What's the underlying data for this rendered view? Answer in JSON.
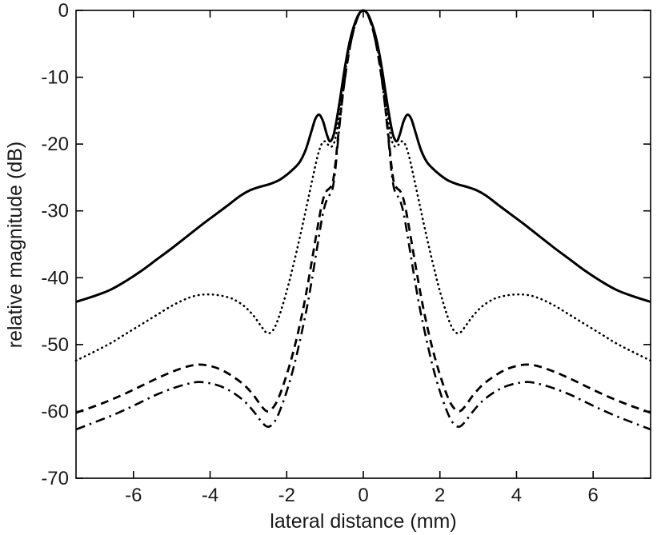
{
  "chart_data": {
    "type": "line",
    "title": "",
    "xlabel": "lateral distance (mm)",
    "ylabel": "relative magnitude (dB)",
    "xlim": [
      -7.5,
      7.5
    ],
    "ylim": [
      -70,
      0
    ],
    "xticks": [
      -6,
      -4,
      -2,
      0,
      2,
      4,
      6
    ],
    "yticks": [
      0,
      -10,
      -20,
      -30,
      -40,
      -50,
      -60,
      -70
    ],
    "grid": false,
    "legend": "none",
    "line_color": "#000000",
    "note": "all four curves are symmetric about x = 0; points are given for x >= 0 and mirrored",
    "series": [
      {
        "name": "solid",
        "style": "solid",
        "width": 3,
        "points_x_ge_0": [
          [
            0,
            0
          ],
          [
            0.1,
            -0.4
          ],
          [
            0.2,
            -1.6
          ],
          [
            0.3,
            -3.4
          ],
          [
            0.4,
            -5.9
          ],
          [
            0.5,
            -9.2
          ],
          [
            0.6,
            -13
          ],
          [
            0.7,
            -16.5
          ],
          [
            0.78,
            -18.7
          ],
          [
            0.87,
            -19.6
          ],
          [
            0.95,
            -18.6
          ],
          [
            1.05,
            -16.6
          ],
          [
            1.15,
            -15.6
          ],
          [
            1.25,
            -16.2
          ],
          [
            1.35,
            -18
          ],
          [
            1.5,
            -20.8
          ],
          [
            1.65,
            -22.6
          ],
          [
            1.8,
            -23.6
          ],
          [
            2.0,
            -24.6
          ],
          [
            2.2,
            -25.4
          ],
          [
            2.45,
            -26
          ],
          [
            2.7,
            -26.4
          ],
          [
            2.95,
            -26.9
          ],
          [
            3.2,
            -27.7
          ],
          [
            3.5,
            -29
          ],
          [
            3.8,
            -30.3
          ],
          [
            4.2,
            -32
          ],
          [
            4.6,
            -33.8
          ],
          [
            5.0,
            -35.6
          ],
          [
            5.4,
            -37.3
          ],
          [
            5.8,
            -39
          ],
          [
            6.2,
            -40.5
          ],
          [
            6.6,
            -41.8
          ],
          [
            7.0,
            -42.7
          ],
          [
            7.5,
            -43.6
          ]
        ]
      },
      {
        "name": "dotted",
        "style": "dotted",
        "width": 2.6,
        "points_x_ge_0": [
          [
            0,
            0
          ],
          [
            0.1,
            -0.45
          ],
          [
            0.2,
            -1.8
          ],
          [
            0.3,
            -3.8
          ],
          [
            0.4,
            -6.6
          ],
          [
            0.5,
            -10.2
          ],
          [
            0.6,
            -14.4
          ],
          [
            0.68,
            -17.6
          ],
          [
            0.75,
            -19.6
          ],
          [
            0.83,
            -20.4
          ],
          [
            0.92,
            -20.1
          ],
          [
            1.0,
            -19.6
          ],
          [
            1.08,
            -19.9
          ],
          [
            1.18,
            -21.5
          ],
          [
            1.3,
            -24.5
          ],
          [
            1.45,
            -28.5
          ],
          [
            1.6,
            -32.5
          ],
          [
            1.8,
            -37.5
          ],
          [
            2.0,
            -42
          ],
          [
            2.2,
            -45.8
          ],
          [
            2.35,
            -47.8
          ],
          [
            2.5,
            -48.3
          ],
          [
            2.65,
            -47.4
          ],
          [
            2.85,
            -45.8
          ],
          [
            3.1,
            -44.3
          ],
          [
            3.4,
            -43.2
          ],
          [
            3.7,
            -42.7
          ],
          [
            4.0,
            -42.5
          ],
          [
            4.3,
            -42.6
          ],
          [
            4.6,
            -43.1
          ],
          [
            5.0,
            -44.2
          ],
          [
            5.4,
            -45.6
          ],
          [
            5.8,
            -47
          ],
          [
            6.2,
            -48.4
          ],
          [
            6.6,
            -49.8
          ],
          [
            7.0,
            -51
          ],
          [
            7.5,
            -52.4
          ]
        ]
      },
      {
        "name": "dashed",
        "style": "dashed",
        "width": 2.8,
        "points_x_ge_0": [
          [
            0,
            0
          ],
          [
            0.1,
            -0.5
          ],
          [
            0.2,
            -1.9
          ],
          [
            0.3,
            -4.1
          ],
          [
            0.4,
            -7.1
          ],
          [
            0.5,
            -11
          ],
          [
            0.58,
            -14.8
          ],
          [
            0.66,
            -19
          ],
          [
            0.73,
            -23
          ],
          [
            0.8,
            -25.8
          ],
          [
            0.88,
            -26.6
          ],
          [
            0.97,
            -27.1
          ],
          [
            1.05,
            -28.3
          ],
          [
            1.15,
            -31
          ],
          [
            1.3,
            -36
          ],
          [
            1.45,
            -41
          ],
          [
            1.6,
            -45.5
          ],
          [
            1.8,
            -50.5
          ],
          [
            2.0,
            -54.5
          ],
          [
            2.2,
            -57.8
          ],
          [
            2.35,
            -59.4
          ],
          [
            2.5,
            -60
          ],
          [
            2.65,
            -59.3
          ],
          [
            2.85,
            -57.7
          ],
          [
            3.1,
            -56.1
          ],
          [
            3.4,
            -54.8
          ],
          [
            3.7,
            -53.8
          ],
          [
            4.0,
            -53.2
          ],
          [
            4.3,
            -53
          ],
          [
            4.6,
            -53.3
          ],
          [
            5.0,
            -54.1
          ],
          [
            5.4,
            -55.1
          ],
          [
            5.8,
            -56.2
          ],
          [
            6.2,
            -57.3
          ],
          [
            6.6,
            -58.3
          ],
          [
            7.0,
            -59.2
          ],
          [
            7.5,
            -60.2
          ]
        ]
      },
      {
        "name": "dash-dot",
        "style": "dashdot",
        "width": 2.6,
        "points_x_ge_0": [
          [
            0,
            0
          ],
          [
            0.1,
            -0.5
          ],
          [
            0.2,
            -1.9
          ],
          [
            0.3,
            -4.1
          ],
          [
            0.4,
            -7.1
          ],
          [
            0.5,
            -11
          ],
          [
            0.58,
            -15
          ],
          [
            0.66,
            -19.5
          ],
          [
            0.73,
            -23.8
          ],
          [
            0.8,
            -26.6
          ],
          [
            0.88,
            -27.6
          ],
          [
            0.97,
            -28.6
          ],
          [
            1.05,
            -30.3
          ],
          [
            1.15,
            -33.5
          ],
          [
            1.3,
            -38.8
          ],
          [
            1.45,
            -43.8
          ],
          [
            1.6,
            -48
          ],
          [
            1.8,
            -53
          ],
          [
            2.0,
            -57
          ],
          [
            2.2,
            -60.2
          ],
          [
            2.35,
            -61.8
          ],
          [
            2.5,
            -62.3
          ],
          [
            2.65,
            -61.6
          ],
          [
            2.85,
            -60.1
          ],
          [
            3.1,
            -58.5
          ],
          [
            3.4,
            -57.2
          ],
          [
            3.7,
            -56.3
          ],
          [
            4.0,
            -55.8
          ],
          [
            4.3,
            -55.6
          ],
          [
            4.6,
            -55.9
          ],
          [
            5.0,
            -56.6
          ],
          [
            5.4,
            -57.5
          ],
          [
            5.8,
            -58.6
          ],
          [
            6.2,
            -59.7
          ],
          [
            6.6,
            -60.7
          ],
          [
            7.0,
            -61.6
          ],
          [
            7.5,
            -62.7
          ]
        ]
      }
    ]
  }
}
